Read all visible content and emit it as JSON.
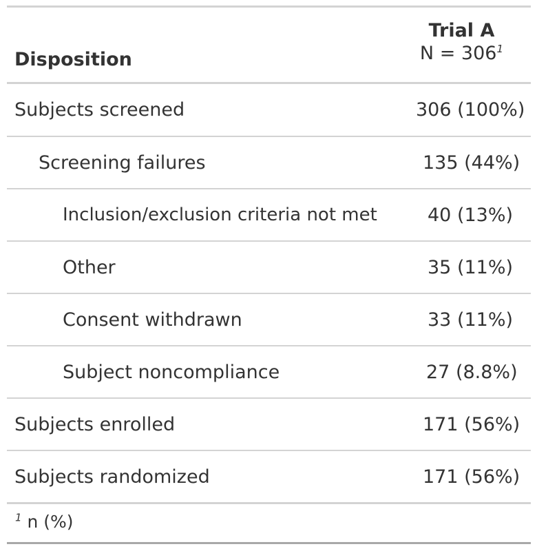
{
  "table": {
    "header": {
      "label": "Disposition",
      "column_title": "Trial A",
      "column_n": "N = 306",
      "column_footnote_mark": "1"
    },
    "rows": [
      {
        "label": "Subjects screened",
        "value": "306 (100%)",
        "indent": 0
      },
      {
        "label": "Screening failures",
        "value": "135 (44%)",
        "indent": 1
      },
      {
        "label": "Inclusion/exclusion criteria not met",
        "value": "40 (13%)",
        "indent": 2
      },
      {
        "label": "Other",
        "value": "35 (11%)",
        "indent": 2
      },
      {
        "label": "Consent withdrawn",
        "value": "33 (11%)",
        "indent": 2
      },
      {
        "label": "Subject noncompliance",
        "value": "27 (8.8%)",
        "indent": 2
      },
      {
        "label": "Subjects enrolled",
        "value": "171 (56%)",
        "indent": 0
      },
      {
        "label": "Subjects randomized",
        "value": "171 (56%)",
        "indent": 0
      }
    ],
    "footnote": {
      "mark": "1",
      "text": "n (%)"
    }
  }
}
